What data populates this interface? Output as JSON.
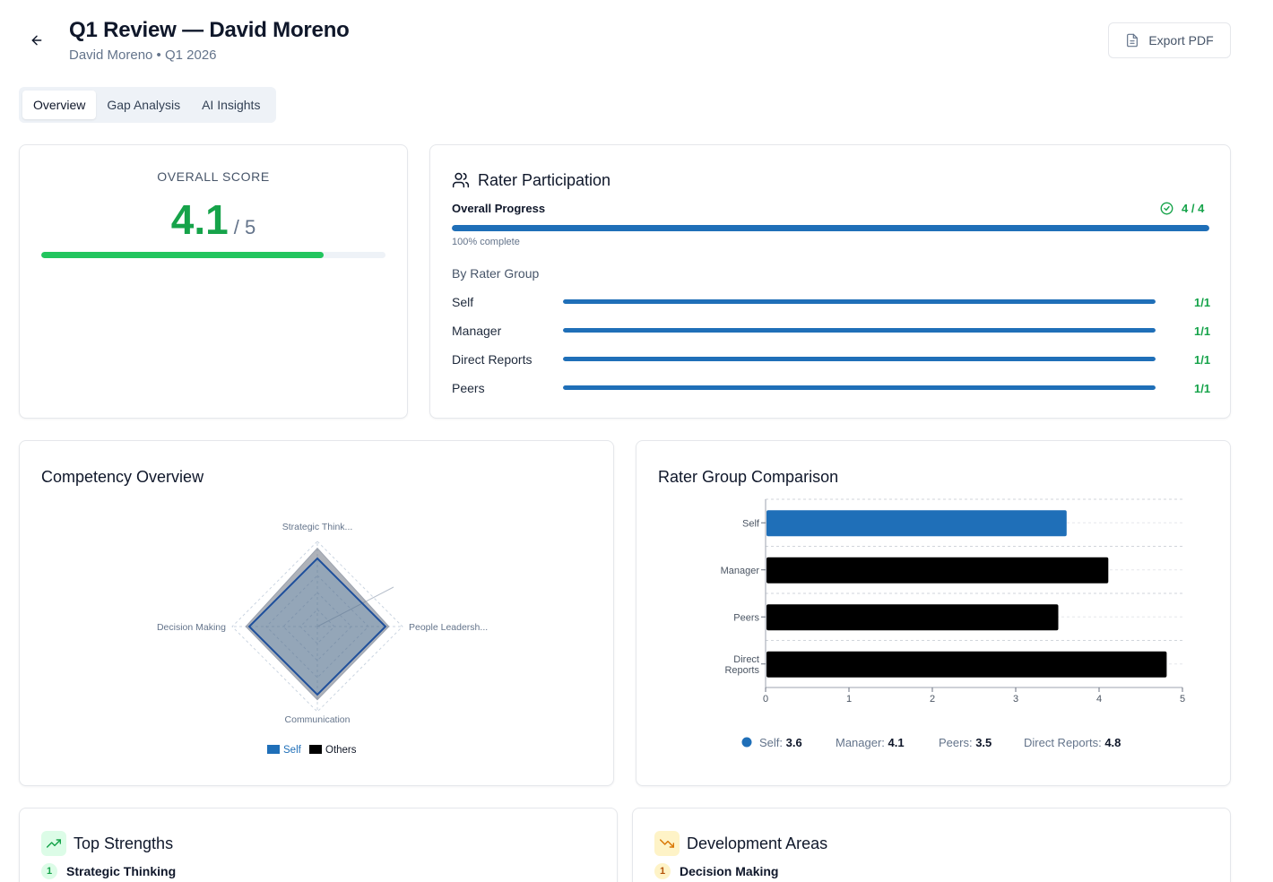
{
  "header": {
    "title": "Q1 Review — David Moreno",
    "subtitle": "David Moreno • Q1 2026",
    "export_label": "Export PDF"
  },
  "tabs": [
    {
      "label": "Overview",
      "active": true
    },
    {
      "label": "Gap Analysis",
      "active": false
    },
    {
      "label": "AI Insights",
      "active": false
    }
  ],
  "overall": {
    "label": "OVERALL SCORE",
    "score": "4.1",
    "max": "/ 5",
    "fraction": 0.82
  },
  "participation": {
    "title": "Rater Participation",
    "progress_label": "Overall Progress",
    "progress_count": "4 / 4",
    "progress_fraction": 1.0,
    "complete_text": "100% complete",
    "group_heading": "By Rater Group",
    "groups": [
      {
        "label": "Self",
        "ratio": "1/1",
        "fraction": 1.0
      },
      {
        "label": "Manager",
        "ratio": "1/1",
        "fraction": 1.0
      },
      {
        "label": "Direct Reports",
        "ratio": "1/1",
        "fraction": 1.0
      },
      {
        "label": "Peers",
        "ratio": "1/1",
        "fraction": 1.0
      }
    ]
  },
  "competency": {
    "title": "Competency Overview",
    "axes": [
      "Strategic Think...",
      "People Leadersh...",
      "Communication",
      "Decision Making"
    ],
    "legend": [
      "Self",
      "Others"
    ]
  },
  "comparison": {
    "title": "Rater Group Comparison",
    "legend": [
      {
        "name": "Self:",
        "value": "3.6"
      },
      {
        "name": "Manager:",
        "value": "4.1"
      },
      {
        "name": "Peers:",
        "value": "3.5"
      },
      {
        "name": "Direct Reports:",
        "value": "4.8"
      }
    ]
  },
  "strengths": {
    "title": "Top Strengths",
    "items": [
      {
        "rank": "1",
        "label": "Strategic Thinking"
      }
    ]
  },
  "development": {
    "title": "Development Areas",
    "items": [
      {
        "rank": "1",
        "label": "Decision Making"
      }
    ]
  },
  "colors": {
    "accent_blue": "#1f6fb8",
    "green": "#16a34a",
    "black": "#000000",
    "slate": "#64748b"
  },
  "chart_data": [
    {
      "type": "radar",
      "axes": [
        "Strategic Think...",
        "People Leadersh...",
        "Communication",
        "Decision Making"
      ],
      "rlim": [
        0,
        5
      ],
      "series": [
        {
          "name": "Self",
          "values": [
            4.0,
            4.0,
            4.0,
            4.0
          ]
        },
        {
          "name": "Others",
          "values": [
            4.6,
            4.2,
            4.3,
            4.2
          ]
        }
      ],
      "legend": "bottom"
    },
    {
      "type": "bar",
      "orientation": "horizontal",
      "categories": [
        "Self",
        "Manager",
        "Peers",
        "Direct Reports"
      ],
      "series": [
        {
          "name": "Self",
          "values": [
            3.6,
            null,
            null,
            null
          ]
        },
        {
          "name": "Others",
          "values": [
            null,
            4.1,
            3.5,
            4.8
          ]
        }
      ],
      "values": [
        3.6,
        4.1,
        3.5,
        4.8
      ],
      "xlim": [
        0,
        5
      ],
      "xticks": [
        "0",
        "1",
        "2",
        "3",
        "4",
        "5"
      ],
      "grid": true
    }
  ]
}
